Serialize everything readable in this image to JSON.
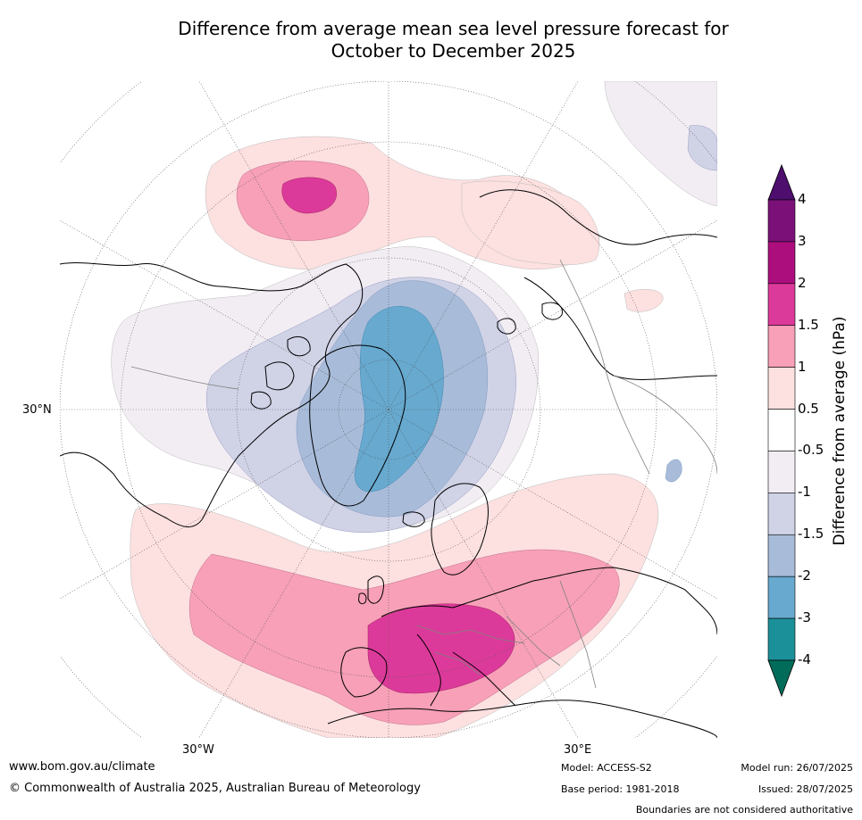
{
  "title": {
    "line1": "Difference from average mean sea level pressure forecast for",
    "line2": "October to December 2025"
  },
  "map": {
    "projection": "north-polar-stereographic",
    "labels": {
      "lat_30n": "30°N",
      "lon_30w": "30°W",
      "lon_30e": "30°E"
    }
  },
  "colorbar": {
    "title": "Difference from average (hPa)",
    "tick_labels": [
      "4",
      "3",
      "2",
      "1.5",
      "1",
      "0.5",
      "-0.5",
      "-1",
      "-1.5",
      "-2",
      "-3",
      "-4"
    ],
    "colors": [
      "#4d0e6e",
      "#7b1178",
      "#ad0e7e",
      "#dc3a9a",
      "#f7a0b8",
      "#fde0e0",
      "#ffffff",
      "#f2edf3",
      "#d0d2e6",
      "#a8bcd9",
      "#67a9cf",
      "#1c9099",
      "#016c59"
    ]
  },
  "footer": {
    "website": "www.bom.gov.au/climate",
    "copyright": "© Commonwealth of Australia 2025, Australian Bureau of Meteorology",
    "model": "Model: ACCESS-S2",
    "base_period": "Base period: 1981-2018",
    "model_run": "Model run: 26/07/2025",
    "issued": "Issued: 28/07/2025",
    "disclaimer": "Boundaries are not considered authoritative"
  }
}
